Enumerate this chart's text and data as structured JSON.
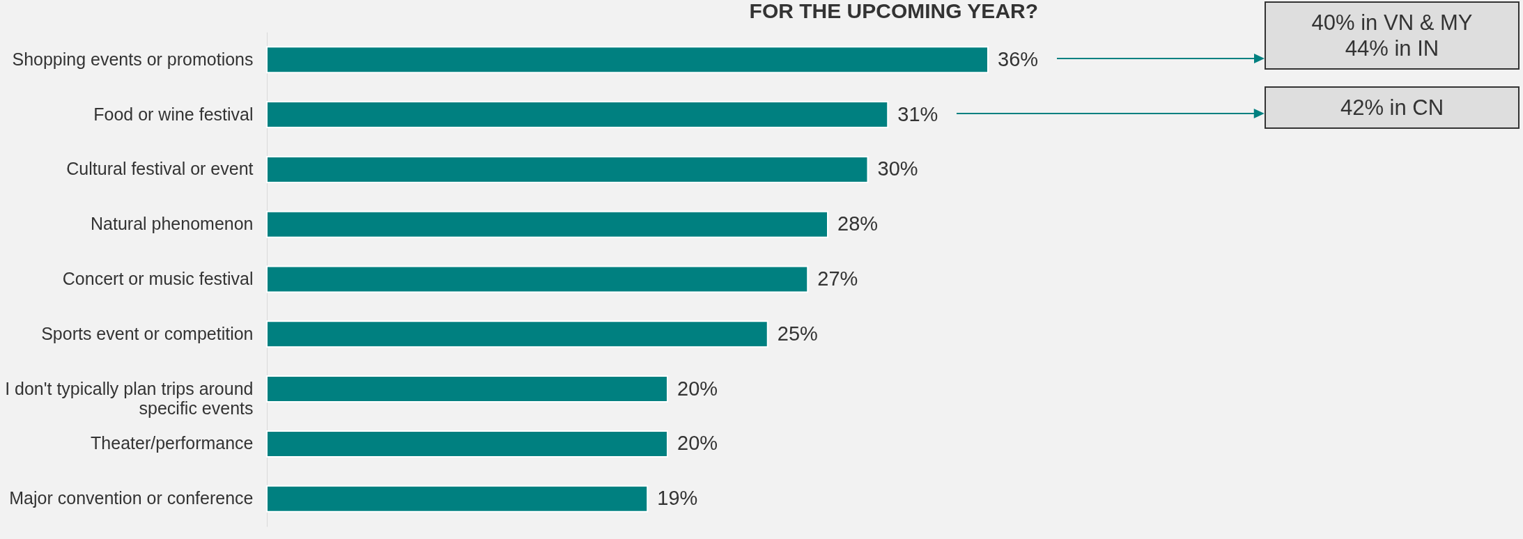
{
  "chart_data": {
    "type": "bar",
    "orientation": "horizontal",
    "title": "FOR THE UPCOMING YEAR?",
    "categories": [
      "Shopping events or promotions",
      "Food or wine festival",
      "Cultural festival or event",
      "Natural phenomenon",
      "Concert or music festival",
      "Sports event or competition",
      "I don't typically plan trips around specific events",
      "Theater/performance",
      "Major convention or conference"
    ],
    "values": [
      36,
      31,
      30,
      28,
      27,
      25,
      20,
      20,
      19
    ],
    "value_labels": [
      "36%",
      "31%",
      "30%",
      "28%",
      "27%",
      "25%",
      "20%",
      "20%",
      "19%"
    ],
    "color": "#008080",
    "annotations": [
      "40% in VN & MY\n44% in IN",
      "42% in CN"
    ]
  }
}
